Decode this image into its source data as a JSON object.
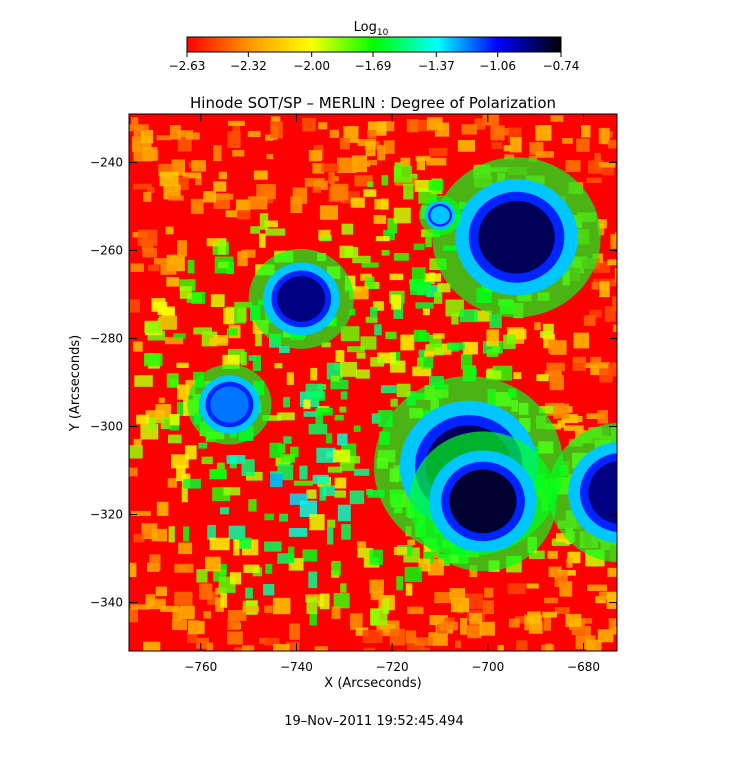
{
  "chart_data": {
    "type": "heatmap",
    "title": "Hinode SOT/SP – MERLIN : Degree of Polarization",
    "xlabel": "X (Arcseconds)",
    "ylabel": "Y (Arcseconds)",
    "xlim": [
      -775,
      -673
    ],
    "ylim": [
      -351,
      -229
    ],
    "x_ticks": [
      -760,
      -740,
      -720,
      -700,
      -680
    ],
    "x_tick_labels": [
      "−760",
      "−740",
      "−720",
      "−700",
      "−680"
    ],
    "y_ticks": [
      -240,
      -260,
      -280,
      -300,
      -320,
      -340
    ],
    "y_tick_labels": [
      "−240",
      "−260",
      "−280",
      "−300",
      "−320",
      "−340"
    ],
    "colorbar": {
      "title_base": "Log",
      "title_sub": "10",
      "range": [
        -2.63,
        -0.74
      ],
      "ticks": [
        -2.63,
        -2.32,
        -2.0,
        -1.69,
        -1.37,
        -1.06,
        -0.74
      ],
      "tick_labels": [
        "−2.63",
        "−2.32",
        "−2.00",
        "−1.69",
        "−1.37",
        "−1.06",
        "−0.74"
      ],
      "colors": [
        "#ff0000",
        "#ff9900",
        "#ffff00",
        "#00ff00",
        "#00ffff",
        "#0000ff",
        "#000000"
      ]
    },
    "features": [
      {
        "x": -739,
        "y": -271,
        "r": 5,
        "value": -0.9
      },
      {
        "x": -694,
        "y": -257,
        "r": 8,
        "value": -0.85
      },
      {
        "x": -704,
        "y": -309,
        "r": 9,
        "value": -0.85
      },
      {
        "x": -701,
        "y": -317,
        "r": 7,
        "value": -0.8
      },
      {
        "x": -672,
        "y": -315,
        "r": 7,
        "value": -0.9
      },
      {
        "x": -754,
        "y": -295,
        "r": 4,
        "value": -1.2
      },
      {
        "x": -710,
        "y": -252,
        "r": 2,
        "value": -1.3
      }
    ]
  },
  "timestamp": "19–Nov–2011 19:52:45.494"
}
